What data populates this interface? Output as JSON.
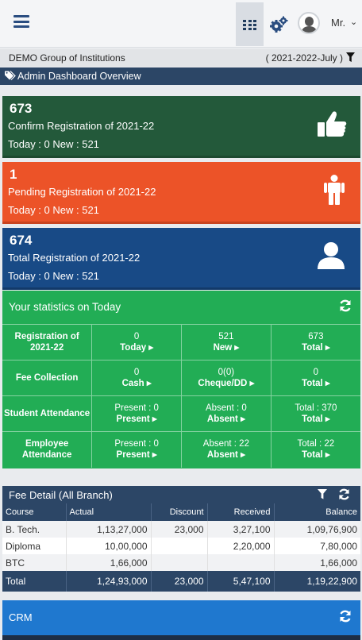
{
  "header": {
    "menu_icon": "hamburger-icon",
    "apps_icon": "grid-icon",
    "settings_icon": "gears-icon",
    "user_name": "Mr.",
    "dropdown_icon": "chevron-down-icon"
  },
  "institution": {
    "name": "DEMO Group of Institutions",
    "session": "( 2021-2022-July )"
  },
  "dashboard": {
    "title": "Admin Dashboard Overview"
  },
  "cards": [
    {
      "count": "673",
      "label": "Confirm Registration of 2021-22",
      "sub": "Today : 0 New : 521",
      "color": "#23593a",
      "icon": "thumbs-up-icon"
    },
    {
      "count": "1",
      "label": "Pending Registration of 2021-22",
      "sub": "Today : 0 New : 521",
      "color": "#ec5328",
      "icon": "person-icon"
    },
    {
      "count": "674",
      "label": "Total Registration of 2021-22",
      "sub": "Today : 0 New : 521",
      "color": "#184a86",
      "icon": "user-icon"
    }
  ],
  "stats": {
    "title": "Your statistics on Today",
    "rows": [
      {
        "label": "Registration of 2021-22",
        "cells": [
          {
            "value": "0",
            "link": "Today"
          },
          {
            "value": "521",
            "link": "New"
          },
          {
            "value": "673",
            "link": "Total"
          }
        ]
      },
      {
        "label": "Fee Collection",
        "cells": [
          {
            "value": "0",
            "link": "Cash"
          },
          {
            "value": "0(0)",
            "link": "Cheque/DD"
          },
          {
            "value": "0",
            "link": "Total"
          }
        ]
      },
      {
        "label": "Student Attendance",
        "cells": [
          {
            "value": "Present : 0",
            "link": "Present"
          },
          {
            "value": "Absent : 0",
            "link": "Absent"
          },
          {
            "value": "Total : 370",
            "link": "Total"
          }
        ]
      },
      {
        "label": "Employee Attendance",
        "cells": [
          {
            "value": "Present : 0",
            "link": "Present"
          },
          {
            "value": "Absent : 22",
            "link": "Absent"
          },
          {
            "value": "Total : 22",
            "link": "Total"
          }
        ]
      }
    ]
  },
  "fee": {
    "title": "Fee Detail (All Branch)",
    "columns": [
      "Course",
      "Actual",
      "Discount",
      "Received",
      "Balance"
    ],
    "rows": [
      [
        "B. Tech.",
        "1,13,27,000",
        "23,000",
        "3,27,100",
        "1,09,76,900"
      ],
      [
        "Diploma",
        "10,00,000",
        "",
        "2,20,000",
        "7,80,000"
      ],
      [
        "BTC",
        "1,66,000",
        "",
        "",
        "1,66,000"
      ]
    ],
    "total": [
      "Total",
      "1,24,93,000",
      "23,000",
      "5,47,100",
      "1,19,22,900"
    ]
  },
  "crm": {
    "title": "CRM"
  }
}
